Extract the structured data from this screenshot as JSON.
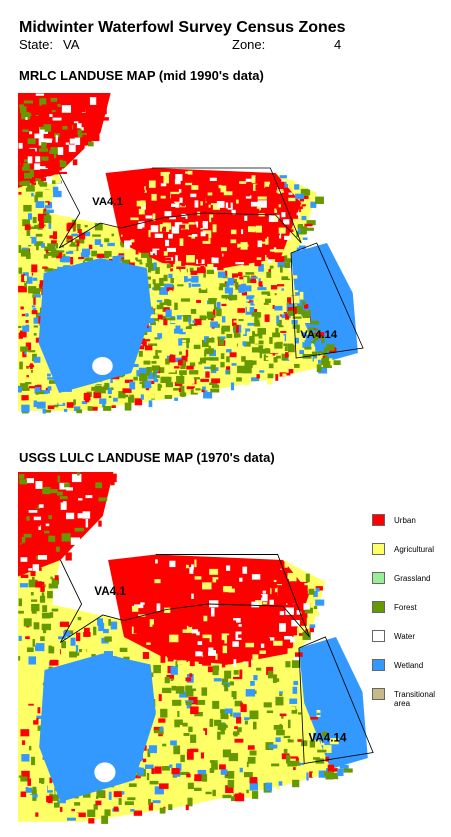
{
  "header": {
    "title": "Midwinter Waterfowl Survey Census Zones",
    "state_label": "State:",
    "state": "VA",
    "zone_label": "Zone:",
    "zone": "4"
  },
  "maps": [
    {
      "title": "MRLC LANDUSE MAP (mid 1990's data)",
      "zones": [
        "VA4.1",
        "VA4.14"
      ]
    },
    {
      "title": "USGS LULC LANDUSE MAP (1970's data)",
      "zones": [
        "VA4.1",
        "VA4.14"
      ]
    }
  ],
  "legend": [
    {
      "label": "Urban",
      "color": "#ff0000"
    },
    {
      "label": "Agricultural",
      "color": "#ffff66"
    },
    {
      "label": "Grassland",
      "color": "#99ee99"
    },
    {
      "label": "Forest",
      "color": "#669900"
    },
    {
      "label": "Water",
      "color": "#ffffff"
    },
    {
      "label": "Wetland",
      "color": "#3399ff"
    },
    {
      "label": "Transitional area",
      "color": "#c8b98a"
    }
  ]
}
